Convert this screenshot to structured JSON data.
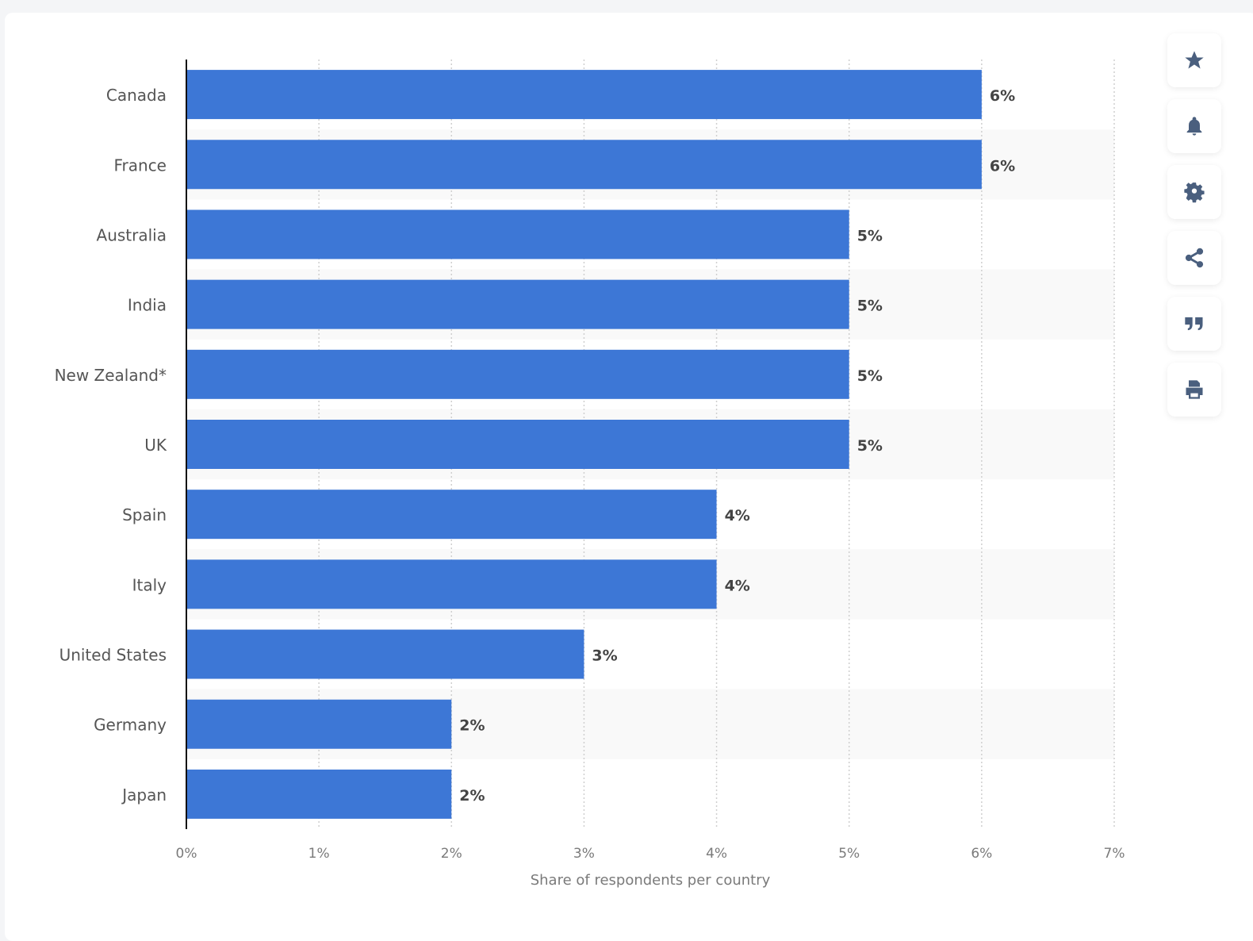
{
  "chart_data": {
    "type": "bar",
    "orientation": "horizontal",
    "categories": [
      "Canada",
      "France",
      "Australia",
      "India",
      "New Zealand*",
      "UK",
      "Spain",
      "Italy",
      "United States",
      "Germany",
      "Japan"
    ],
    "values": [
      6,
      6,
      5,
      5,
      5,
      5,
      4,
      4,
      3,
      2,
      2
    ],
    "data_labels": [
      "6%",
      "6%",
      "5%",
      "5%",
      "5%",
      "5%",
      "4%",
      "4%",
      "3%",
      "2%",
      "2%"
    ],
    "xlabel": "Share of respondents per country",
    "ylabel": "",
    "xlim": [
      0,
      7
    ],
    "xticks": [
      "0%",
      "1%",
      "2%",
      "3%",
      "4%",
      "5%",
      "6%",
      "7%"
    ],
    "grid": true,
    "bar_color": "#3d77d6"
  },
  "toolbar": {
    "items": [
      {
        "icon": "star-icon",
        "name": "favorite-button"
      },
      {
        "icon": "bell-icon",
        "name": "notification-button"
      },
      {
        "icon": "gear-icon",
        "name": "settings-button"
      },
      {
        "icon": "share-icon",
        "name": "share-button"
      },
      {
        "icon": "quote-icon",
        "name": "cite-button"
      },
      {
        "icon": "print-icon",
        "name": "print-button"
      }
    ]
  }
}
